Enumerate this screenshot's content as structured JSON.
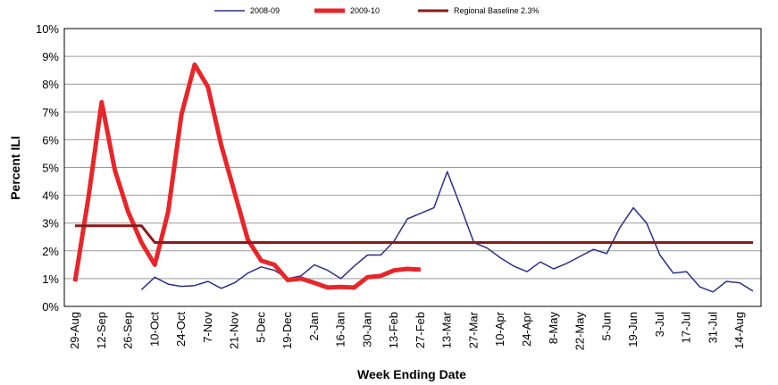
{
  "chart_data": {
    "type": "line",
    "x_label": "Week Ending Date",
    "y_label": "Percent ILI",
    "categories": [
      "29-Aug",
      null,
      "12-Sep",
      null,
      "26-Sep",
      null,
      "10-Oct",
      null,
      "24-Oct",
      null,
      "7-Nov",
      null,
      "21-Nov",
      null,
      "5-Dec",
      null,
      "19-Dec",
      null,
      "2-Jan",
      null,
      "16-Jan",
      null,
      "30-Jan",
      null,
      "13-Feb",
      null,
      "27-Feb",
      null,
      "13-Mar",
      null,
      "27-Mar",
      null,
      "10-Apr",
      null,
      "24-Apr",
      null,
      "8-May",
      null,
      "22-May",
      null,
      "5-Jun",
      null,
      "19-Jun",
      null,
      "3-Jul",
      null,
      "17-Jul",
      null,
      "31-Jul",
      null,
      "14-Aug",
      null
    ],
    "series": [
      {
        "name": "2008-09",
        "color": "#2e2e8c",
        "width": 1.5,
        "values": [
          null,
          null,
          null,
          null,
          null,
          0.6,
          1.05,
          0.8,
          0.72,
          0.75,
          0.9,
          0.65,
          0.85,
          1.2,
          1.42,
          1.3,
          1.0,
          1.1,
          1.5,
          1.3,
          1.0,
          1.45,
          1.85,
          1.85,
          2.35,
          3.15,
          3.35,
          3.55,
          4.85,
          3.6,
          2.3,
          2.1,
          1.75,
          1.45,
          1.25,
          1.6,
          1.35,
          1.55,
          1.8,
          2.05,
          1.9,
          2.85,
          3.55,
          3.0,
          1.85,
          1.2,
          1.25,
          0.7,
          0.52,
          0.9,
          0.85,
          0.55
        ]
      },
      {
        "name": "2009-10",
        "color": "#e8262a",
        "width": 5,
        "values": [
          0.9,
          3.9,
          7.35,
          4.9,
          3.4,
          2.3,
          1.5,
          3.4,
          6.9,
          8.7,
          7.9,
          5.8,
          4.1,
          2.4,
          1.65,
          1.5,
          0.95,
          1.0,
          0.85,
          0.68,
          0.7,
          0.68,
          1.05,
          1.1,
          1.3,
          1.35,
          1.32,
          null,
          null,
          null,
          null,
          null,
          null,
          null,
          null,
          null,
          null,
          null,
          null,
          null,
          null,
          null,
          null,
          null,
          null,
          null,
          null,
          null,
          null,
          null,
          null,
          null
        ]
      },
      {
        "name": "Regional Baseline 2.3%",
        "color": "#8b1a1a",
        "width": 3,
        "values": [
          2.9,
          2.9,
          2.9,
          2.9,
          2.9,
          2.9,
          2.3,
          2.3,
          2.3,
          2.3,
          2.3,
          2.3,
          2.3,
          2.3,
          2.3,
          2.3,
          2.3,
          2.3,
          2.3,
          2.3,
          2.3,
          2.3,
          2.3,
          2.3,
          2.3,
          2.3,
          2.3,
          2.3,
          2.3,
          2.3,
          2.3,
          2.3,
          2.3,
          2.3,
          2.3,
          2.3,
          2.3,
          2.3,
          2.3,
          2.3,
          2.3,
          2.3,
          2.3,
          2.3,
          2.3,
          2.3,
          2.3,
          2.3,
          2.3,
          2.3,
          2.3,
          2.3
        ]
      }
    ],
    "ylim": [
      0,
      10
    ],
    "yticks": [
      {
        "value": 0,
        "label": "0%"
      },
      {
        "value": 1,
        "label": "1%"
      },
      {
        "value": 2,
        "label": "2%"
      },
      {
        "value": 3,
        "label": "3%"
      },
      {
        "value": 4,
        "label": "4%"
      },
      {
        "value": 5,
        "label": "5%"
      },
      {
        "value": 6,
        "label": "6%"
      },
      {
        "value": 7,
        "label": "7%"
      },
      {
        "value": 8,
        "label": "8%"
      },
      {
        "value": 9,
        "label": "9%"
      },
      {
        "value": 10,
        "label": "10%"
      }
    ],
    "grid": true,
    "legend": "top"
  }
}
